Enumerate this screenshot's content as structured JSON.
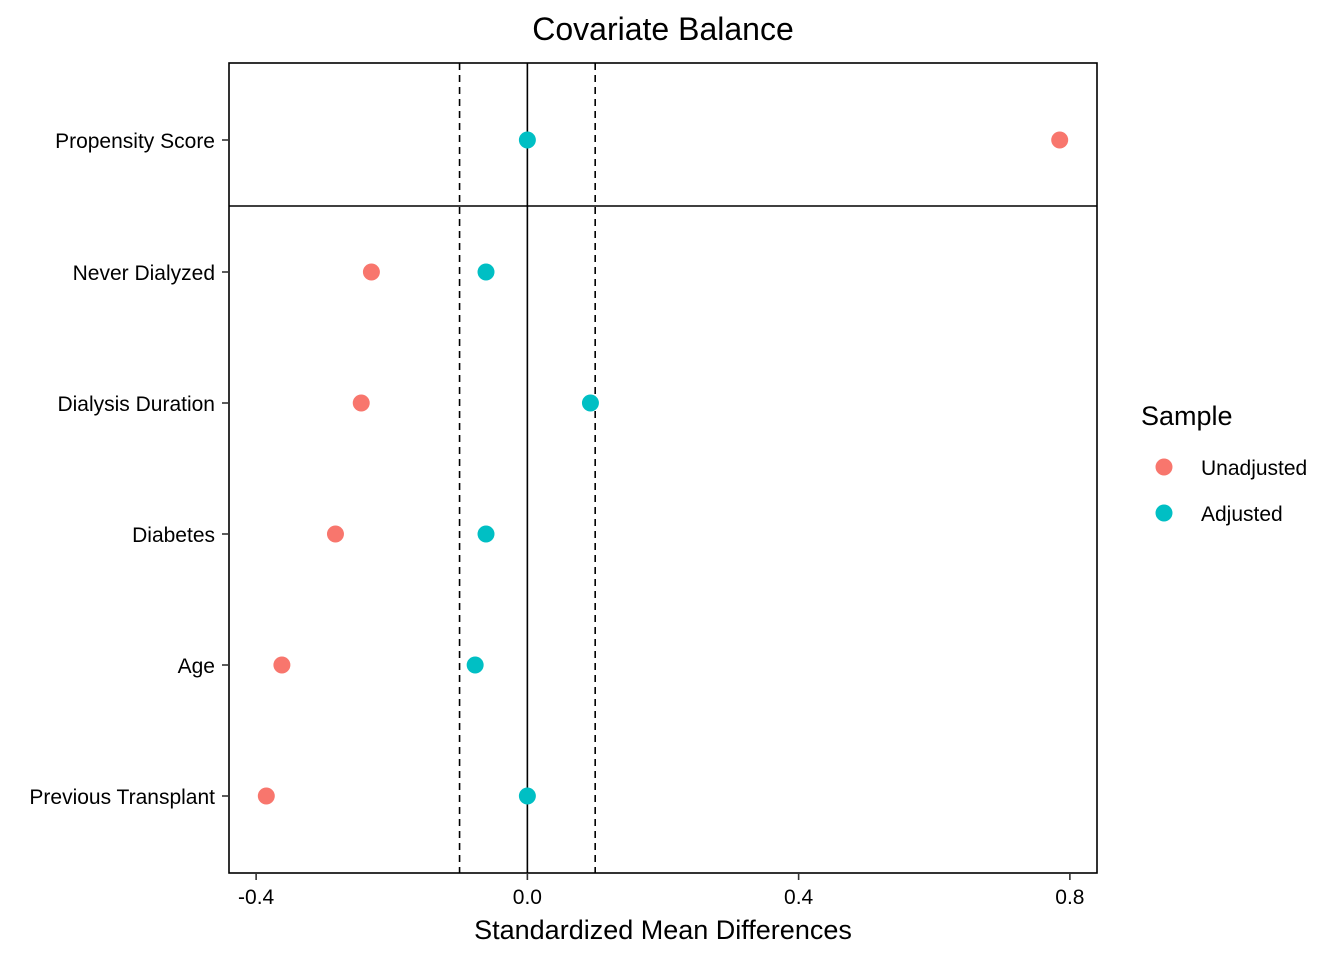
{
  "chart_data": {
    "type": "scatter",
    "title": "Covariate Balance",
    "xlabel": "Standardized Mean Differences",
    "ylabel": "",
    "xlim": [
      -0.44,
      0.84
    ],
    "x_ticks": [
      -0.4,
      0.0,
      0.4,
      0.8
    ],
    "x_tick_labels": [
      "-0.4",
      "0.0",
      "0.4",
      "0.8"
    ],
    "reference_lines": {
      "solid": 0.0,
      "dashed": [
        -0.1,
        0.1
      ]
    },
    "categories": [
      "Propensity Score",
      "Never Dialyzed",
      "Dialysis Duration",
      "Diabetes",
      "Age",
      "Previous Transplant"
    ],
    "series": [
      {
        "name": "Unadjusted",
        "color": "#F8766D",
        "values": [
          0.785,
          -0.23,
          -0.245,
          -0.283,
          -0.362,
          -0.385
        ]
      },
      {
        "name": "Adjusted",
        "color": "#00BFC4",
        "values": [
          0.0,
          -0.061,
          0.093,
          -0.061,
          -0.077,
          0.0
        ]
      }
    ],
    "legend": {
      "title": "Sample",
      "placement": "right"
    },
    "grid": false
  }
}
